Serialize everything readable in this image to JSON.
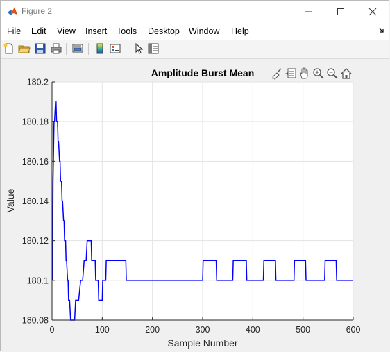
{
  "window": {
    "title": "Figure 2"
  },
  "menu": {
    "items": [
      "File",
      "Edit",
      "View",
      "Insert",
      "Tools",
      "Desktop",
      "Window",
      "Help"
    ]
  },
  "toolbar": {
    "buttons": [
      "new-figure-icon",
      "open-file-icon",
      "save-icon",
      "print-icon",
      "link-plot-icon",
      "insert-colorbar-icon",
      "insert-legend-icon",
      "edit-plot-icon",
      "property-inspector-icon"
    ]
  },
  "axes_toolbar": {
    "buttons": [
      "brush-icon",
      "data-tips-icon",
      "pan-icon",
      "zoom-in-icon",
      "zoom-out-icon",
      "home-icon"
    ]
  },
  "colors": {
    "line": "#0000ff",
    "grid": "#e3e3e3",
    "axes_bg": "#ffffff"
  },
  "chart_data": {
    "type": "line",
    "title": "Amplitude Burst Mean",
    "xlabel": "Sample Number",
    "ylabel": "Value",
    "xlim": [
      0,
      600
    ],
    "ylim": [
      180.08,
      180.2
    ],
    "xticks": [
      0,
      100,
      200,
      300,
      400,
      500,
      600
    ],
    "xtick_labels": [
      "0",
      "100",
      "200",
      "300",
      "400",
      "500",
      "600"
    ],
    "yticks": [
      180.08,
      180.1,
      180.12,
      180.14,
      180.16,
      180.18,
      180.2
    ],
    "ytick_labels": [
      "180.08",
      "180.1",
      "180.12",
      "180.14",
      "180.16",
      "180.18",
      "180.2"
    ],
    "grid": true,
    "series": [
      {
        "x": [
          1,
          2,
          4,
          5,
          7,
          8,
          9,
          11,
          12,
          13,
          15,
          16,
          17,
          19,
          20,
          21,
          23,
          24,
          25,
          27,
          28,
          29,
          31,
          32,
          33,
          35,
          37,
          38,
          40,
          41,
          44,
          45,
          47,
          48,
          52,
          53,
          57,
          58,
          60,
          61,
          64,
          65,
          67,
          68,
          70,
          71,
          78,
          79,
          86,
          87,
          92,
          93,
          100,
          101,
          107,
          108,
          119,
          120,
          147,
          148,
          300,
          301,
          327,
          328,
          360,
          361,
          387,
          388,
          421,
          422,
          445,
          446,
          482,
          483,
          505,
          506,
          543,
          544,
          566,
          567,
          600
        ],
        "y": [
          180.1,
          180.15,
          180.18,
          180.18,
          180.19,
          180.19,
          180.18,
          180.18,
          180.17,
          180.17,
          180.16,
          180.16,
          180.15,
          180.15,
          180.14,
          180.14,
          180.13,
          180.13,
          180.12,
          180.12,
          180.11,
          180.11,
          180.1,
          180.1,
          180.09,
          180.09,
          180.08,
          180.08,
          180.08,
          180.08,
          180.08,
          180.08,
          180.09,
          180.09,
          180.09,
          180.09,
          180.1,
          180.1,
          180.1,
          180.1,
          180.11,
          180.11,
          180.11,
          180.11,
          180.12,
          180.12,
          180.12,
          180.11,
          180.11,
          180.1,
          180.1,
          180.09,
          180.09,
          180.1,
          180.1,
          180.11,
          180.11,
          180.11,
          180.11,
          180.1,
          180.1,
          180.11,
          180.11,
          180.1,
          180.1,
          180.11,
          180.11,
          180.1,
          180.1,
          180.11,
          180.11,
          180.1,
          180.1,
          180.11,
          180.11,
          180.1,
          180.1,
          180.11,
          180.11,
          180.1,
          180.1
        ]
      }
    ]
  }
}
